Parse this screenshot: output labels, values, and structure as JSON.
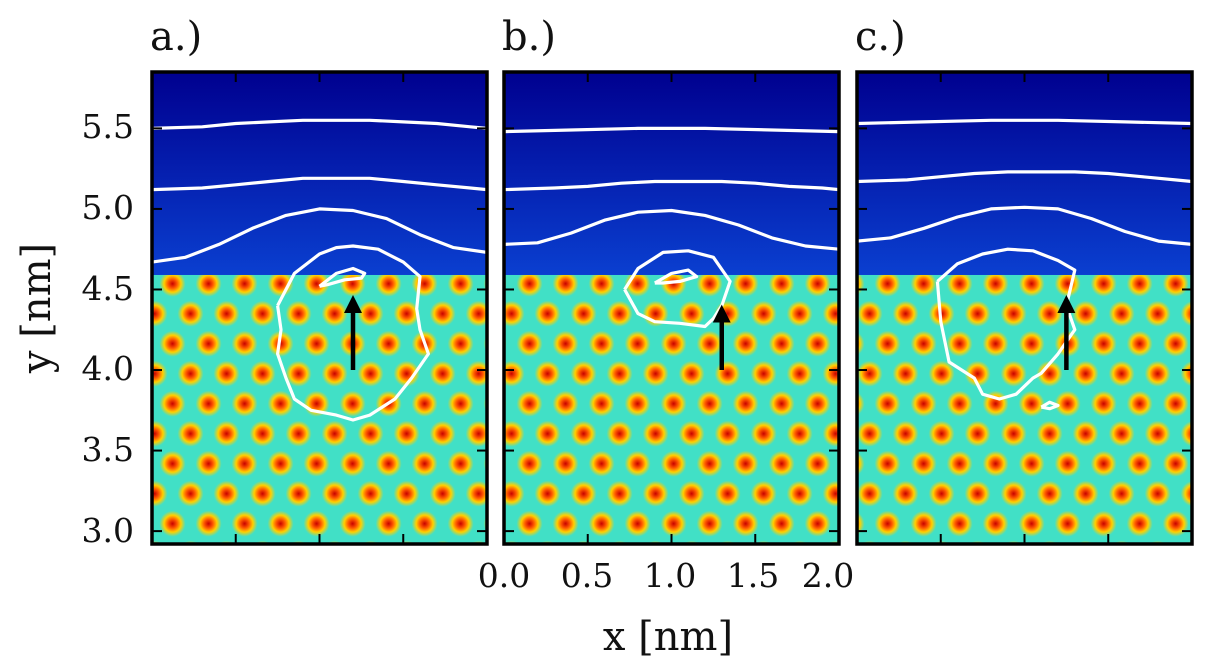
{
  "chart_data": {
    "type": "heatmap",
    "colormap": "jet",
    "panels": [
      {
        "label": "a.)",
        "arrow": {
          "from": [
            1.2,
            4.0
          ],
          "to": [
            1.2,
            4.49
          ]
        },
        "interface_y": 4.59,
        "contour_lines": [
          {
            "x": [
              0.0,
              0.3,
              0.5,
              0.7,
              0.9,
              1.1,
              1.3,
              1.5,
              1.7,
              1.9,
              2.0
            ],
            "y": [
              5.5,
              5.51,
              5.53,
              5.54,
              5.55,
              5.55,
              5.55,
              5.54,
              5.53,
              5.51,
              5.5
            ]
          },
          {
            "x": [
              0.0,
              0.3,
              0.5,
              0.7,
              0.9,
              1.1,
              1.3,
              1.5,
              1.7,
              1.9,
              2.0
            ],
            "y": [
              5.12,
              5.13,
              5.15,
              5.17,
              5.19,
              5.19,
              5.19,
              5.17,
              5.15,
              5.13,
              5.12
            ]
          },
          {
            "x": [
              0.0,
              0.2,
              0.4,
              0.6,
              0.8,
              1.0,
              1.2,
              1.4,
              1.6,
              1.8,
              2.0
            ],
            "y": [
              4.67,
              4.7,
              4.78,
              4.88,
              4.96,
              5.0,
              4.99,
              4.94,
              4.84,
              4.76,
              4.73
            ]
          },
          {
            "x": [
              0.75,
              0.85,
              1.0,
              1.1,
              1.2,
              1.35,
              1.5,
              1.6,
              1.58,
              1.6,
              1.65,
              1.55,
              1.45,
              1.3,
              1.2,
              1.1,
              0.95,
              0.85,
              0.8,
              0.75,
              0.77,
              0.75
            ],
            "y": [
              4.4,
              4.6,
              4.72,
              4.76,
              4.77,
              4.75,
              4.67,
              4.58,
              4.38,
              4.25,
              4.1,
              3.95,
              3.82,
              3.72,
              3.69,
              3.72,
              3.75,
              3.82,
              3.95,
              4.1,
              4.25,
              4.4
            ]
          },
          {
            "x": [
              1.0,
              1.1,
              1.2,
              1.27,
              1.25,
              1.15,
              1.05,
              1.0
            ],
            "y": [
              4.52,
              4.6,
              4.63,
              4.6,
              4.57,
              4.56,
              4.53,
              4.52
            ]
          }
        ]
      },
      {
        "label": "b.)",
        "arrow": {
          "from": [
            1.3,
            4.0
          ],
          "to": [
            1.3,
            4.43
          ]
        },
        "interface_y": 4.59,
        "contour_lines": [
          {
            "x": [
              0.0,
              0.4,
              0.8,
              1.0,
              1.2,
              1.6,
              2.0
            ],
            "y": [
              5.48,
              5.49,
              5.5,
              5.5,
              5.5,
              5.49,
              5.48
            ]
          },
          {
            "x": [
              0.0,
              0.3,
              0.5,
              0.7,
              0.9,
              1.1,
              1.3,
              1.5,
              1.7,
              1.9,
              2.0
            ],
            "y": [
              5.12,
              5.13,
              5.14,
              5.16,
              5.17,
              5.17,
              5.17,
              5.16,
              5.14,
              5.13,
              5.12
            ]
          },
          {
            "x": [
              0.0,
              0.2,
              0.4,
              0.6,
              0.8,
              1.0,
              1.2,
              1.4,
              1.6,
              1.8,
              2.0
            ],
            "y": [
              4.78,
              4.79,
              4.85,
              4.93,
              4.98,
              4.99,
              4.96,
              4.9,
              4.82,
              4.77,
              4.75
            ]
          },
          {
            "x": [
              0.72,
              0.8,
              0.95,
              1.1,
              1.25,
              1.35,
              1.3,
              1.25,
              1.2,
              1.05,
              0.9,
              0.8,
              0.72
            ],
            "y": [
              4.5,
              4.63,
              4.73,
              4.74,
              4.7,
              4.55,
              4.4,
              4.32,
              4.27,
              4.29,
              4.3,
              4.35,
              4.5
            ]
          },
          {
            "x": [
              0.9,
              1.0,
              1.1,
              1.15,
              1.05,
              0.95,
              0.9
            ],
            "y": [
              4.54,
              4.6,
              4.62,
              4.58,
              4.55,
              4.54,
              4.54
            ]
          }
        ]
      },
      {
        "label": "c.)",
        "arrow": {
          "from": [
            1.25,
            4.0
          ],
          "to": [
            1.25,
            4.49
          ]
        },
        "interface_y": 4.59,
        "contour_lines": [
          {
            "x": [
              0.0,
              0.4,
              0.8,
              1.0,
              1.2,
              1.6,
              2.0
            ],
            "y": [
              5.53,
              5.54,
              5.55,
              5.55,
              5.55,
              5.54,
              5.53
            ]
          },
          {
            "x": [
              0.0,
              0.3,
              0.5,
              0.7,
              0.9,
              1.1,
              1.3,
              1.5,
              1.7,
              1.9,
              2.0
            ],
            "y": [
              5.17,
              5.18,
              5.2,
              5.22,
              5.23,
              5.23,
              5.23,
              5.22,
              5.2,
              5.18,
              5.17
            ]
          },
          {
            "x": [
              0.0,
              0.2,
              0.4,
              0.6,
              0.8,
              1.0,
              1.2,
              1.4,
              1.6,
              1.8,
              2.0
            ],
            "y": [
              4.8,
              4.82,
              4.88,
              4.95,
              5.0,
              5.01,
              5.0,
              4.94,
              4.86,
              4.8,
              4.78
            ]
          },
          {
            "x": [
              0.48,
              0.6,
              0.75,
              0.9,
              1.05,
              1.2,
              1.3,
              1.25,
              1.3,
              1.2,
              1.1,
              1.05,
              0.95,
              0.85,
              0.75,
              0.7,
              0.55,
              0.5,
              0.48
            ],
            "y": [
              4.55,
              4.66,
              4.72,
              4.75,
              4.74,
              4.68,
              4.62,
              4.4,
              4.25,
              4.1,
              3.98,
              3.95,
              3.85,
              3.82,
              3.85,
              3.95,
              4.05,
              4.3,
              4.55
            ]
          },
          {
            "x": [
              1.1,
              1.15,
              1.2,
              1.15,
              1.1
            ],
            "y": [
              3.77,
              3.8,
              3.78,
              3.76,
              3.77
            ]
          }
        ]
      }
    ],
    "xlabel": "x [nm]",
    "ylabel": "y [nm]",
    "xlim": [
      0.0,
      2.0
    ],
    "ylim": [
      2.92,
      5.85
    ],
    "xticks": [
      "0.0",
      "0.5",
      "1.0",
      "1.5",
      "2.0"
    ],
    "yticks": [
      "3.0",
      "3.5",
      "4.0",
      "4.5",
      "5.0",
      "5.5"
    ],
    "xtick_values": [
      0.0,
      0.5,
      1.0,
      1.5,
      2.0
    ],
    "ytick_values": [
      3.0,
      3.5,
      4.0,
      4.5,
      5.0,
      5.5
    ],
    "crystal_lattice_spacing_nm": 0.215,
    "colors": {
      "liquid": "#00008f",
      "background": "#41e0c6",
      "peak_outer": "#ffd000",
      "peak_mid": "#ff5a00",
      "peak_inner": "#c80000",
      "contour": "#ffffff",
      "arrow": "#000000",
      "frame": "#000000"
    }
  }
}
